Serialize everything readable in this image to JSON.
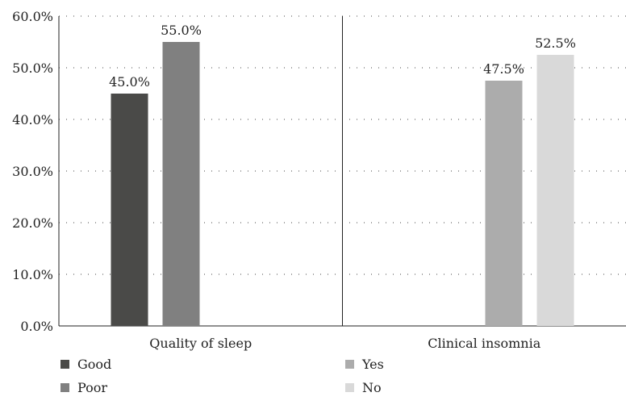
{
  "chart_data": {
    "type": "bar",
    "title": "",
    "xlabel": "",
    "ylabel": "",
    "ylim": [
      0,
      60
    ],
    "yticks": [
      "0.0%",
      "10.0%",
      "20.0%",
      "30.0%",
      "40.0%",
      "50.0%",
      "60.0%"
    ],
    "grid": "dotted horizontal",
    "legend_position": "bottom",
    "groups": [
      {
        "category": "Quality of sleep",
        "bars": [
          {
            "series": "Good",
            "value": 45.0,
            "label": "45.0%",
            "color": "#4a4a48"
          },
          {
            "series": "Poor",
            "value": 55.0,
            "label": "55.0%",
            "color": "#808080"
          }
        ]
      },
      {
        "category": "Clinical insomnia",
        "bars": [
          {
            "series": "Yes",
            "value": 47.5,
            "label": "47.5%",
            "color": "#acacac"
          },
          {
            "series": "No",
            "value": 52.5,
            "label": "52.5%",
            "color": "#d9d9d9"
          }
        ]
      }
    ],
    "legend": [
      {
        "name": "Good",
        "color": "#4a4a48"
      },
      {
        "name": "Poor",
        "color": "#808080"
      },
      {
        "name": "Yes",
        "color": "#acacac"
      },
      {
        "name": "No",
        "color": "#d9d9d9"
      }
    ]
  }
}
